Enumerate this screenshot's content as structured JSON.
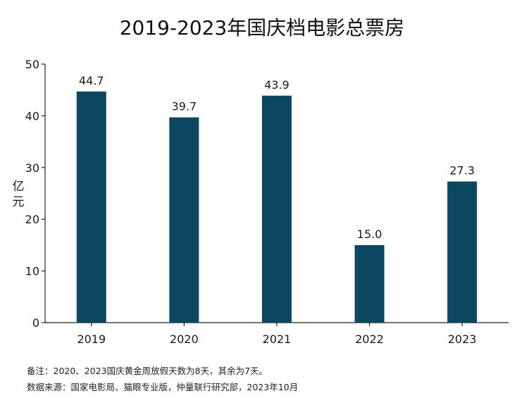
{
  "chart_data": {
    "type": "bar",
    "title": "2019-2023年国庆档电影总票房",
    "ylabel": "亿元",
    "xlabel": "",
    "categories": [
      "2019",
      "2020",
      "2021",
      "2022",
      "2023"
    ],
    "values": [
      44.7,
      39.7,
      43.9,
      15.0,
      27.3
    ],
    "value_labels": [
      "44.7",
      "39.7",
      "43.9",
      "15.0",
      "27.3"
    ],
    "ylim": [
      0,
      50
    ],
    "yticks": [
      0,
      10,
      20,
      30,
      40,
      50
    ],
    "grid": false,
    "bar_color": "#0b475e"
  },
  "notes": {
    "note1": "备注：2020、2023国庆黄金周放假天数为8天，其余为7天。",
    "source": "数据来源：国家电影局、猫眼专业版，仲量联行研究部，2023年10月"
  }
}
